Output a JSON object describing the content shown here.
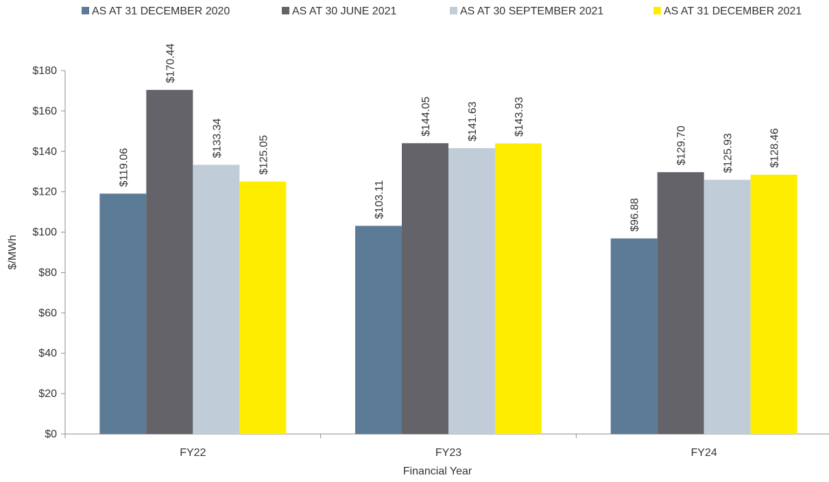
{
  "chart_data": {
    "type": "bar",
    "title": "",
    "xlabel": "Financial Year",
    "ylabel": "$/MWh",
    "categories": [
      "FY22",
      "FY23",
      "FY24"
    ],
    "ylim": [
      0,
      180
    ],
    "y_ticks": [
      0,
      20,
      40,
      60,
      80,
      100,
      120,
      140,
      160,
      180
    ],
    "y_tick_labels": [
      "$0",
      "$20",
      "$40",
      "$60",
      "$80",
      "$100",
      "$120",
      "$140",
      "$160",
      "$180"
    ],
    "grid": false,
    "legend_position": "top",
    "data_label_prefix": "$",
    "series": [
      {
        "name": "AS AT 31 DECEMBER 2020",
        "color": "#5b7b96",
        "values": [
          119.06,
          103.11,
          96.88
        ],
        "labels": [
          "$119.06",
          "$103.11",
          "$96.88"
        ]
      },
      {
        "name": "AS AT 30 JUNE 2021",
        "color": "#636369",
        "values": [
          170.44,
          144.05,
          129.7
        ],
        "labels": [
          "$170.44",
          "$144.05",
          "$129.70"
        ]
      },
      {
        "name": "AS AT 30 SEPTEMBER 2021",
        "color": "#c0cdd8",
        "values": [
          133.34,
          141.63,
          125.93
        ],
        "labels": [
          "$133.34",
          "$141.63",
          "$125.93"
        ]
      },
      {
        "name": "AS AT 31 DECEMBER 2021",
        "color": "#ffed00",
        "values": [
          125.05,
          143.93,
          128.46
        ],
        "labels": [
          "$125.05",
          "$143.93",
          "$128.46"
        ]
      }
    ]
  }
}
